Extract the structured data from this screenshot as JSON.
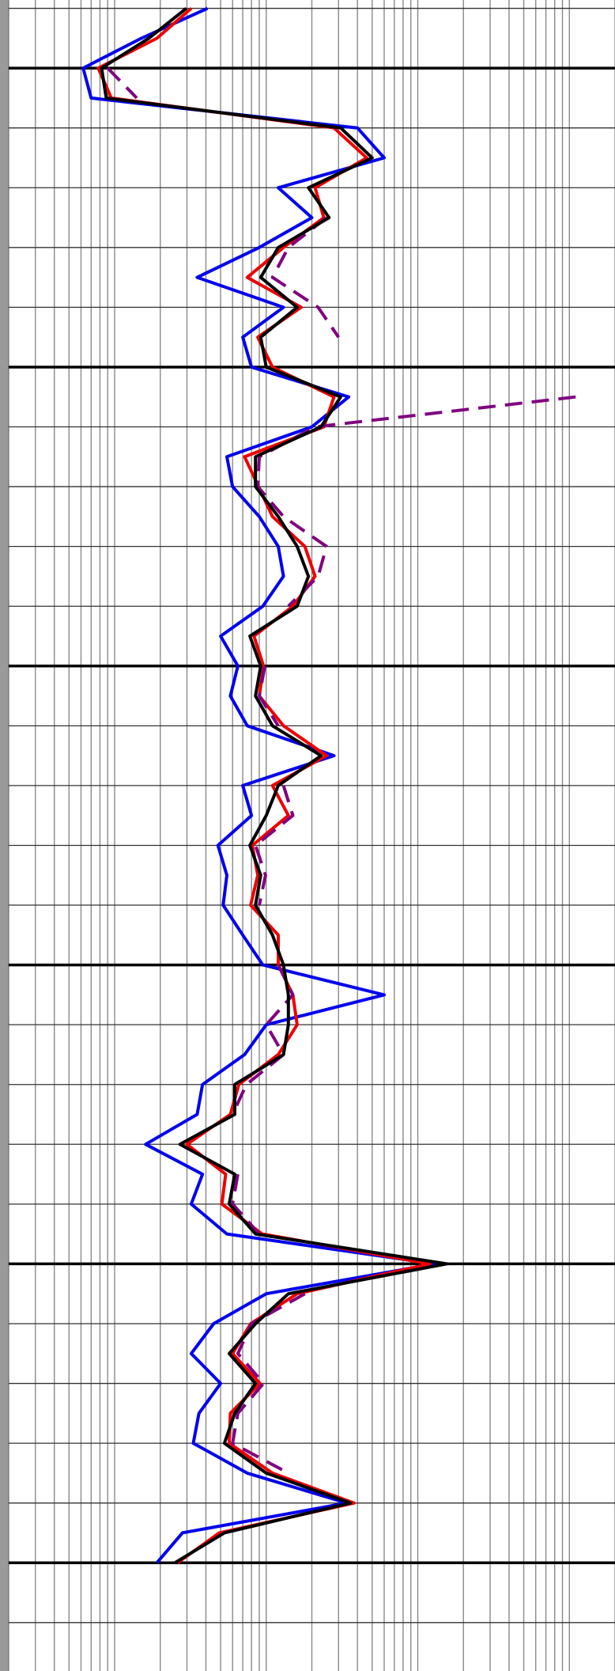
{
  "chart_data": {
    "type": "log-track",
    "x_scale": "log",
    "xlim": [
      0.2,
      2000
    ],
    "xticks": [
      0.2,
      0.3,
      0.4,
      0.5,
      0.6,
      0.7,
      0.8,
      0.9,
      1,
      2,
      3,
      4,
      5,
      6,
      7,
      8,
      9,
      10,
      20,
      30,
      40,
      50,
      60,
      70,
      80,
      90,
      100,
      200,
      300,
      400,
      500,
      600,
      700,
      800,
      900,
      1000,
      2000
    ],
    "ylim": [
      4988.6,
      5268.1
    ],
    "y_inverted": true,
    "yticks": [
      4990,
      5010,
      5020,
      5030,
      5040,
      5060,
      5070,
      5080,
      5090,
      5110,
      5120,
      5130,
      5140,
      5160,
      5170,
      5180,
      5190,
      5210,
      5220,
      5230,
      5240,
      5260
    ],
    "y_major_ticks": [
      5000,
      5050,
      5100,
      5150,
      5200,
      5250
    ],
    "grid": true,
    "x": [
      4990,
      4995,
      5000,
      5005,
      5010,
      5015,
      5020,
      5025,
      5030,
      5035,
      5040,
      5045,
      5050,
      5055,
      5060,
      5065,
      5070,
      5075,
      5080,
      5085,
      5090,
      5095,
      5100,
      5105,
      5110,
      5115,
      5120,
      5125,
      5130,
      5135,
      5140,
      5145,
      5150,
      5155,
      5160,
      5165,
      5170,
      5175,
      5180,
      5185,
      5190,
      5195,
      5200,
      5205,
      5210,
      5215,
      5220,
      5225,
      5230,
      5235,
      5240,
      5245,
      5250
    ],
    "series": [
      {
        "color": "#0000ee",
        "style": "solid",
        "values": [
          4.1,
          1.5,
          0.62,
          0.7,
          40,
          60,
          12,
          20,
          9,
          3.5,
          13,
          7.0,
          8.0,
          35,
          20,
          5.5,
          6.0,
          9.0,
          12,
          13,
          9.5,
          5.0,
          6.5,
          5.8,
          7.5,
          28,
          7.0,
          8.0,
          4.8,
          5.5,
          5.2,
          7.0,
          9.5,
          60,
          10,
          7.2,
          3.8,
          3.5,
          1.6,
          3.8,
          3.2,
          5.5,
          130,
          10,
          4.5,
          3.2,
          5.0,
          3.6,
          3.3,
          7.5,
          34,
          2.8,
          1.9
        ]
      },
      {
        "color": "#ee0000",
        "style": "solid",
        "values": [
          3.2,
          1.9,
          0.78,
          0.95,
          28,
          46,
          21,
          24,
          13,
          7.5,
          17,
          8.8,
          11,
          28,
          24,
          7.2,
          8.9,
          11,
          18,
          21,
          15,
          8.3,
          9.6,
          9.0,
          13,
          25,
          11,
          14,
          8.1,
          8.8,
          7.9,
          12,
          12,
          15,
          16,
          12,
          6.6,
          5.8,
          3.0,
          5.4,
          5.1,
          9.4,
          120,
          16,
          7.9,
          6.0,
          9.1,
          5.8,
          5.7,
          11,
          38,
          4.9,
          2.6
        ]
      },
      {
        "color": "#800080",
        "style": "dashed",
        "values": [
          null,
          null,
          0.9,
          1.4,
          null,
          null,
          null,
          25,
          14,
          11,
          22,
          30,
          null,
          1100,
          21,
          9.0,
          8.8,
          13,
          25,
          22,
          14,
          null,
          9.8,
          9.0,
          12,
          null,
          13,
          15,
          8.5,
          9.9,
          9.0,
          null,
          12,
          15,
          10,
          13,
          7.4,
          6.0,
          null,
          6.5,
          6.0,
          9.0,
          null,
          18,
          8.0,
          6.5,
          9.6,
          6.5,
          6.0,
          14,
          null,
          5.4,
          null
        ]
      },
      {
        "color": "#000000",
        "style": "solid",
        "values": [
          2.97,
          1.68,
          0.82,
          0.88,
          31,
          50,
          19,
          26,
          12,
          9.2,
          16,
          9.2,
          10,
          31,
          23,
          8.5,
          8.5,
          12,
          16,
          19,
          16,
          7.8,
          9.2,
          8.5,
          11,
          23,
          12,
          10,
          7.8,
          9.2,
          8.5,
          11,
          13,
          14,
          14,
          13,
          6.2,
          6.2,
          2.7,
          6.2,
          5.7,
          8.5,
          155,
          14,
          8.5,
          5.7,
          8.5,
          6.2,
          5.3,
          10,
          36,
          5.3,
          2.5
        ]
      }
    ]
  }
}
